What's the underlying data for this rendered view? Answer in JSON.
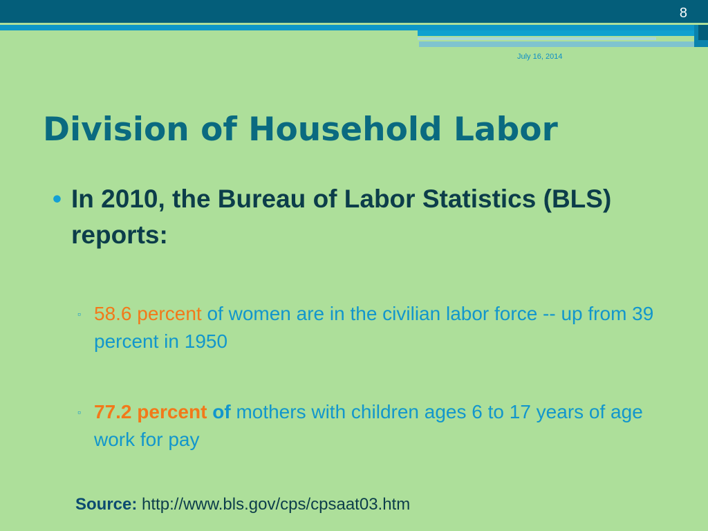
{
  "slide": {
    "number": "8",
    "date": "July 16, 2014",
    "title": "Division of Household Labor"
  },
  "bullets": {
    "main": "In 2010, the Bureau of Labor Statistics (BLS) reports:",
    "sub1": {
      "highlight_number": "58.6",
      "highlight_word": "percent",
      "rest": "of women are in the civilian labor force -- up from 39 percent in 1950"
    },
    "sub2": {
      "highlight_number": "77.2",
      "highlight_word": "percent",
      "of_word": "of",
      "rest": "mothers with children ages 6 to 17 years of age work for pay"
    }
  },
  "source": {
    "label": "Source:",
    "url": "http://www.bls.gov/cps/cpsaat03.htm"
  },
  "colors": {
    "background": "#addf9a",
    "header_dark": "#045e7a",
    "header_light": "#0d97c8",
    "title": "#0a6a80",
    "accent_orange": "#f2791a",
    "accent_blue": "#1296cc"
  }
}
